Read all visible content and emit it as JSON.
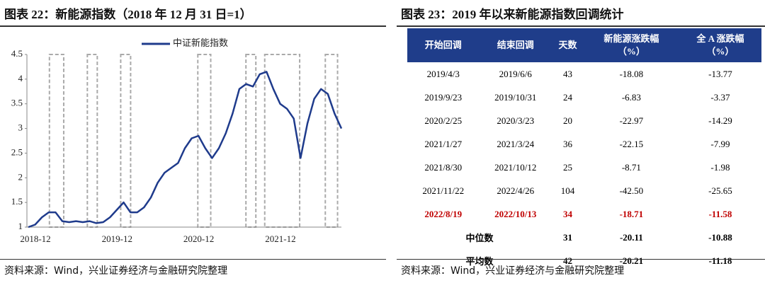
{
  "chart_data": {
    "type": "line",
    "title": "图表 22：新能源指数（2018 年 12 月 31 日=1）",
    "categories": [
      "2018-12",
      null,
      null,
      null,
      null,
      null,
      null,
      null,
      null,
      null,
      null,
      null,
      "2019-12",
      null,
      null,
      null,
      null,
      null,
      null,
      null,
      null,
      null,
      null,
      null,
      "2020-12",
      null,
      null,
      null,
      null,
      null,
      null,
      null,
      null,
      null,
      null,
      null,
      "2021-12",
      null,
      null,
      null,
      null,
      null,
      null,
      null,
      null,
      null,
      null
    ],
    "series": [
      {
        "name": "中证新能指数",
        "color": "#1f3b8c",
        "values": [
          1.0,
          1.05,
          1.2,
          1.3,
          1.3,
          1.12,
          1.1,
          1.12,
          1.1,
          1.12,
          1.08,
          1.1,
          1.2,
          1.35,
          1.5,
          1.3,
          1.3,
          1.4,
          1.6,
          1.9,
          2.1,
          2.2,
          2.3,
          2.6,
          2.8,
          2.85,
          2.6,
          2.4,
          2.6,
          2.9,
          3.3,
          3.8,
          3.9,
          3.85,
          4.1,
          4.15,
          3.8,
          3.5,
          3.4,
          3.2,
          2.4,
          3.1,
          3.6,
          3.8,
          3.7,
          3.3,
          3.0
        ]
      }
    ],
    "ylim": [
      1,
      4.5
    ],
    "yticks": [
      1,
      1.5,
      2,
      2.5,
      3,
      3.5,
      4,
      4.5
    ],
    "grid": false,
    "source": "资料来源：Wind，兴业证券经济与金融研究院整理"
  },
  "table": {
    "title": "图表 23：2019 年以来新能源指数回调统计",
    "header": [
      "开始回调",
      "结束回调",
      "天数",
      "新能源涨跌幅\n（%）",
      "全 A 涨跌幅\n（%）"
    ],
    "rows": [
      [
        "2019/4/3",
        "2019/6/6",
        "43",
        "-18.08",
        "-13.77"
      ],
      [
        "2019/9/23",
        "2019/10/31",
        "24",
        "-6.83",
        "-3.37"
      ],
      [
        "2020/2/25",
        "2020/3/23",
        "20",
        "-22.97",
        "-14.29"
      ],
      [
        "2021/1/27",
        "2021/3/24",
        "36",
        "-22.15",
        "-7.99"
      ],
      [
        "2021/8/30",
        "2021/10/12",
        "25",
        "-8.71",
        "-1.98"
      ],
      [
        "2021/11/22",
        "2022/4/26",
        "104",
        "-42.50",
        "-25.65"
      ],
      [
        "2022/8/19",
        "2022/10/13",
        "34",
        "-18.71",
        "-11.58"
      ]
    ],
    "highlight_row": 6,
    "highlight_color": "#c00000",
    "header_color": "#1f3d8a",
    "summary": [
      {
        "label": "中位数",
        "values": [
          "31",
          "-20.11",
          "-10.88"
        ]
      },
      {
        "label": "平均数",
        "values": [
          "42",
          "-20.21",
          "-11.18"
        ]
      }
    ],
    "source": "资料来源：Wind，兴业证券经济与金融研究院整理"
  }
}
